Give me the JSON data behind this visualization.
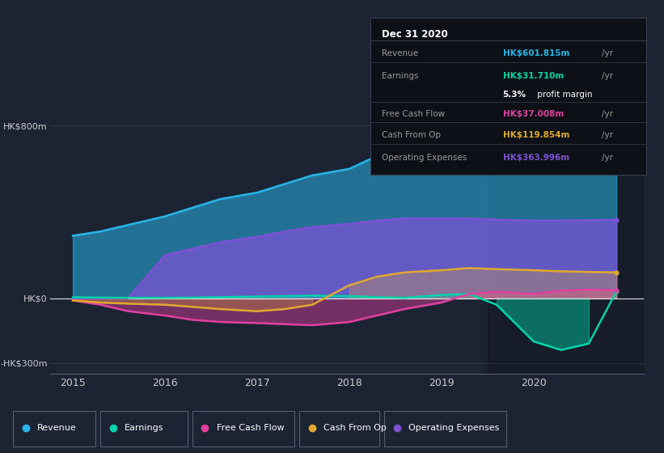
{
  "background_color": "#1c2333",
  "chart_bg": "#1c2333",
  "x_ticks": [
    2015,
    2016,
    2017,
    2018,
    2019,
    2020
  ],
  "years": [
    2015.0,
    2015.3,
    2015.6,
    2016.0,
    2016.3,
    2016.6,
    2017.0,
    2017.3,
    2017.6,
    2018.0,
    2018.3,
    2018.6,
    2019.0,
    2019.3,
    2019.6,
    2020.0,
    2020.3,
    2020.6,
    2020.9
  ],
  "revenue": [
    290,
    310,
    340,
    380,
    420,
    460,
    490,
    530,
    570,
    600,
    660,
    700,
    710,
    720,
    700,
    650,
    630,
    615,
    602
  ],
  "operating_expenses": [
    0,
    0,
    0,
    200,
    230,
    260,
    285,
    310,
    330,
    345,
    360,
    370,
    370,
    370,
    365,
    360,
    360,
    362,
    364
  ],
  "earnings": [
    5,
    3,
    2,
    2,
    3,
    5,
    8,
    10,
    12,
    10,
    5,
    2,
    15,
    20,
    -30,
    -200,
    -240,
    -210,
    32
  ],
  "free_cash_flow": [
    -10,
    -30,
    -60,
    -80,
    -100,
    -110,
    -115,
    -120,
    -125,
    -110,
    -80,
    -50,
    -20,
    20,
    30,
    20,
    35,
    40,
    37
  ],
  "cash_from_op": [
    -10,
    -20,
    -25,
    -30,
    -40,
    -50,
    -60,
    -50,
    -30,
    60,
    100,
    120,
    130,
    140,
    135,
    130,
    125,
    122,
    120
  ],
  "revenue_color": "#29b5e8",
  "earnings_color": "#00d4aa",
  "free_cash_flow_color": "#e040a0",
  "cash_from_op_color": "#e0a830",
  "operating_expenses_color": "#7b52d4",
  "info_box": {
    "title": "Dec 31 2020",
    "revenue_label": "Revenue",
    "revenue_value": "HK$601.815m",
    "revenue_color": "#29b5e8",
    "earnings_label": "Earnings",
    "earnings_value": "HK$31.710m",
    "earnings_color": "#00d4aa",
    "margin_bold": "5.3%",
    "margin_rest": " profit margin",
    "fcf_label": "Free Cash Flow",
    "fcf_value": "HK$37.008m",
    "fcf_color": "#e040a0",
    "cop_label": "Cash From Op",
    "cop_value": "HK$119.854m",
    "cop_color": "#e0a830",
    "opex_label": "Operating Expenses",
    "opex_value": "HK$363.996m",
    "opex_color": "#7b52d4"
  },
  "legend_items": [
    {
      "label": "Revenue",
      "color": "#29b5e8"
    },
    {
      "label": "Earnings",
      "color": "#00d4aa"
    },
    {
      "label": "Free Cash Flow",
      "color": "#e040a0"
    },
    {
      "label": "Cash From Op",
      "color": "#e0a830"
    },
    {
      "label": "Operating Expenses",
      "color": "#7b52d4"
    }
  ]
}
